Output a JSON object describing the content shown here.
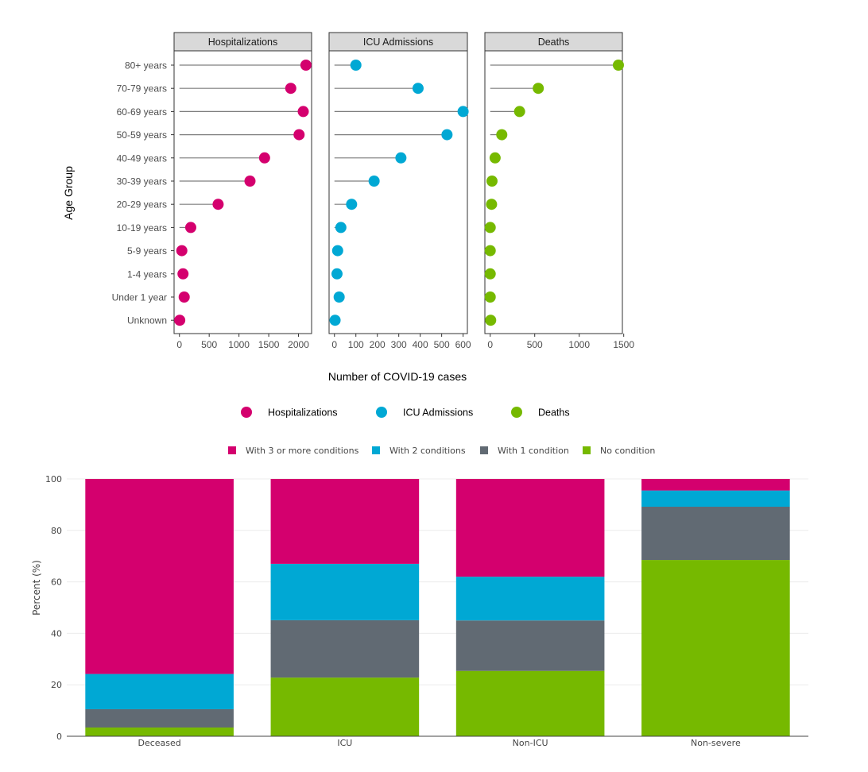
{
  "colors": {
    "hospitalizations": "#d4006e",
    "icu": "#00a8d4",
    "deaths": "#76b900",
    "three_plus": "#d4006e",
    "two": "#00a8d4",
    "one": "#616a73",
    "none": "#76b900",
    "strip_fill": "#d9d9d9",
    "stem": "#7f7f7f"
  },
  "chart_data": [
    {
      "type": "scatter",
      "subtype": "faceted-lollipop",
      "xlabel": "Number of COVID-19 cases",
      "ylabel": "Age Group",
      "categories": [
        "80+ years",
        "70-79 years",
        "60-69 years",
        "50-59 years",
        "40-49 years",
        "30-39 years",
        "20-29 years",
        "10-19 years",
        "5-9 years",
        "1-4 years",
        "Under 1 year",
        "Unknown"
      ],
      "legend": {
        "position": "bottom",
        "entries": [
          "Hospitalizations",
          "ICU Admissions",
          "Deaths"
        ]
      },
      "facets": [
        {
          "name": "Hospitalizations",
          "color_key": "hospitalizations",
          "xlim": [
            -90,
            2220
          ],
          "ticks": [
            0,
            500,
            1000,
            1500,
            2000
          ],
          "tick_labels": [
            "0",
            "500",
            "1000",
            "1500",
            "2000"
          ],
          "values": [
            2125,
            1870,
            2080,
            2010,
            1430,
            1185,
            650,
            190,
            40,
            60,
            80,
            5
          ]
        },
        {
          "name": "ICU Admissions",
          "color_key": "icu",
          "xlim": [
            -25,
            620
          ],
          "ticks": [
            0,
            100,
            200,
            300,
            400,
            500,
            600
          ],
          "tick_labels": [
            "0",
            "100",
            "200",
            "300",
            "400",
            "500",
            "600"
          ],
          "values": [
            100,
            390,
            600,
            525,
            310,
            185,
            80,
            30,
            15,
            12,
            22,
            3
          ]
        },
        {
          "name": "Deaths",
          "color_key": "deaths",
          "xlim": [
            -60,
            1485
          ],
          "ticks": [
            0,
            500,
            1000,
            1500
          ],
          "tick_labels": [
            "0",
            "500",
            "1000",
            "1500"
          ],
          "values": [
            1440,
            540,
            330,
            130,
            55,
            20,
            15,
            0,
            0,
            0,
            0,
            5
          ]
        }
      ]
    },
    {
      "type": "bar",
      "subtype": "stacked",
      "ylabel": "Percent (%)",
      "xlabel": "",
      "ylim": [
        0,
        100
      ],
      "yticks": [
        0,
        20,
        40,
        60,
        80,
        100
      ],
      "grid": true,
      "legend": {
        "position": "top"
      },
      "categories": [
        "Deceased",
        "ICU",
        "Non-ICU",
        "Non-severe"
      ],
      "series": [
        {
          "name": "With 3 or more conditions",
          "color_key": "three_plus",
          "values": [
            75.8,
            33.0,
            38.0,
            4.5
          ]
        },
        {
          "name": "With 2 conditions",
          "color_key": "two",
          "values": [
            13.7,
            21.9,
            17.0,
            6.3
          ]
        },
        {
          "name": "With 1 condition",
          "color_key": "one",
          "values": [
            7.1,
            22.3,
            19.6,
            20.7
          ]
        },
        {
          "name": "No condition",
          "color_key": "none",
          "values": [
            3.4,
            22.8,
            25.4,
            68.5
          ]
        }
      ],
      "stack_order_bottom_up": [
        "No condition",
        "With 1 condition",
        "With 2 conditions",
        "With 3 or more conditions"
      ]
    }
  ]
}
